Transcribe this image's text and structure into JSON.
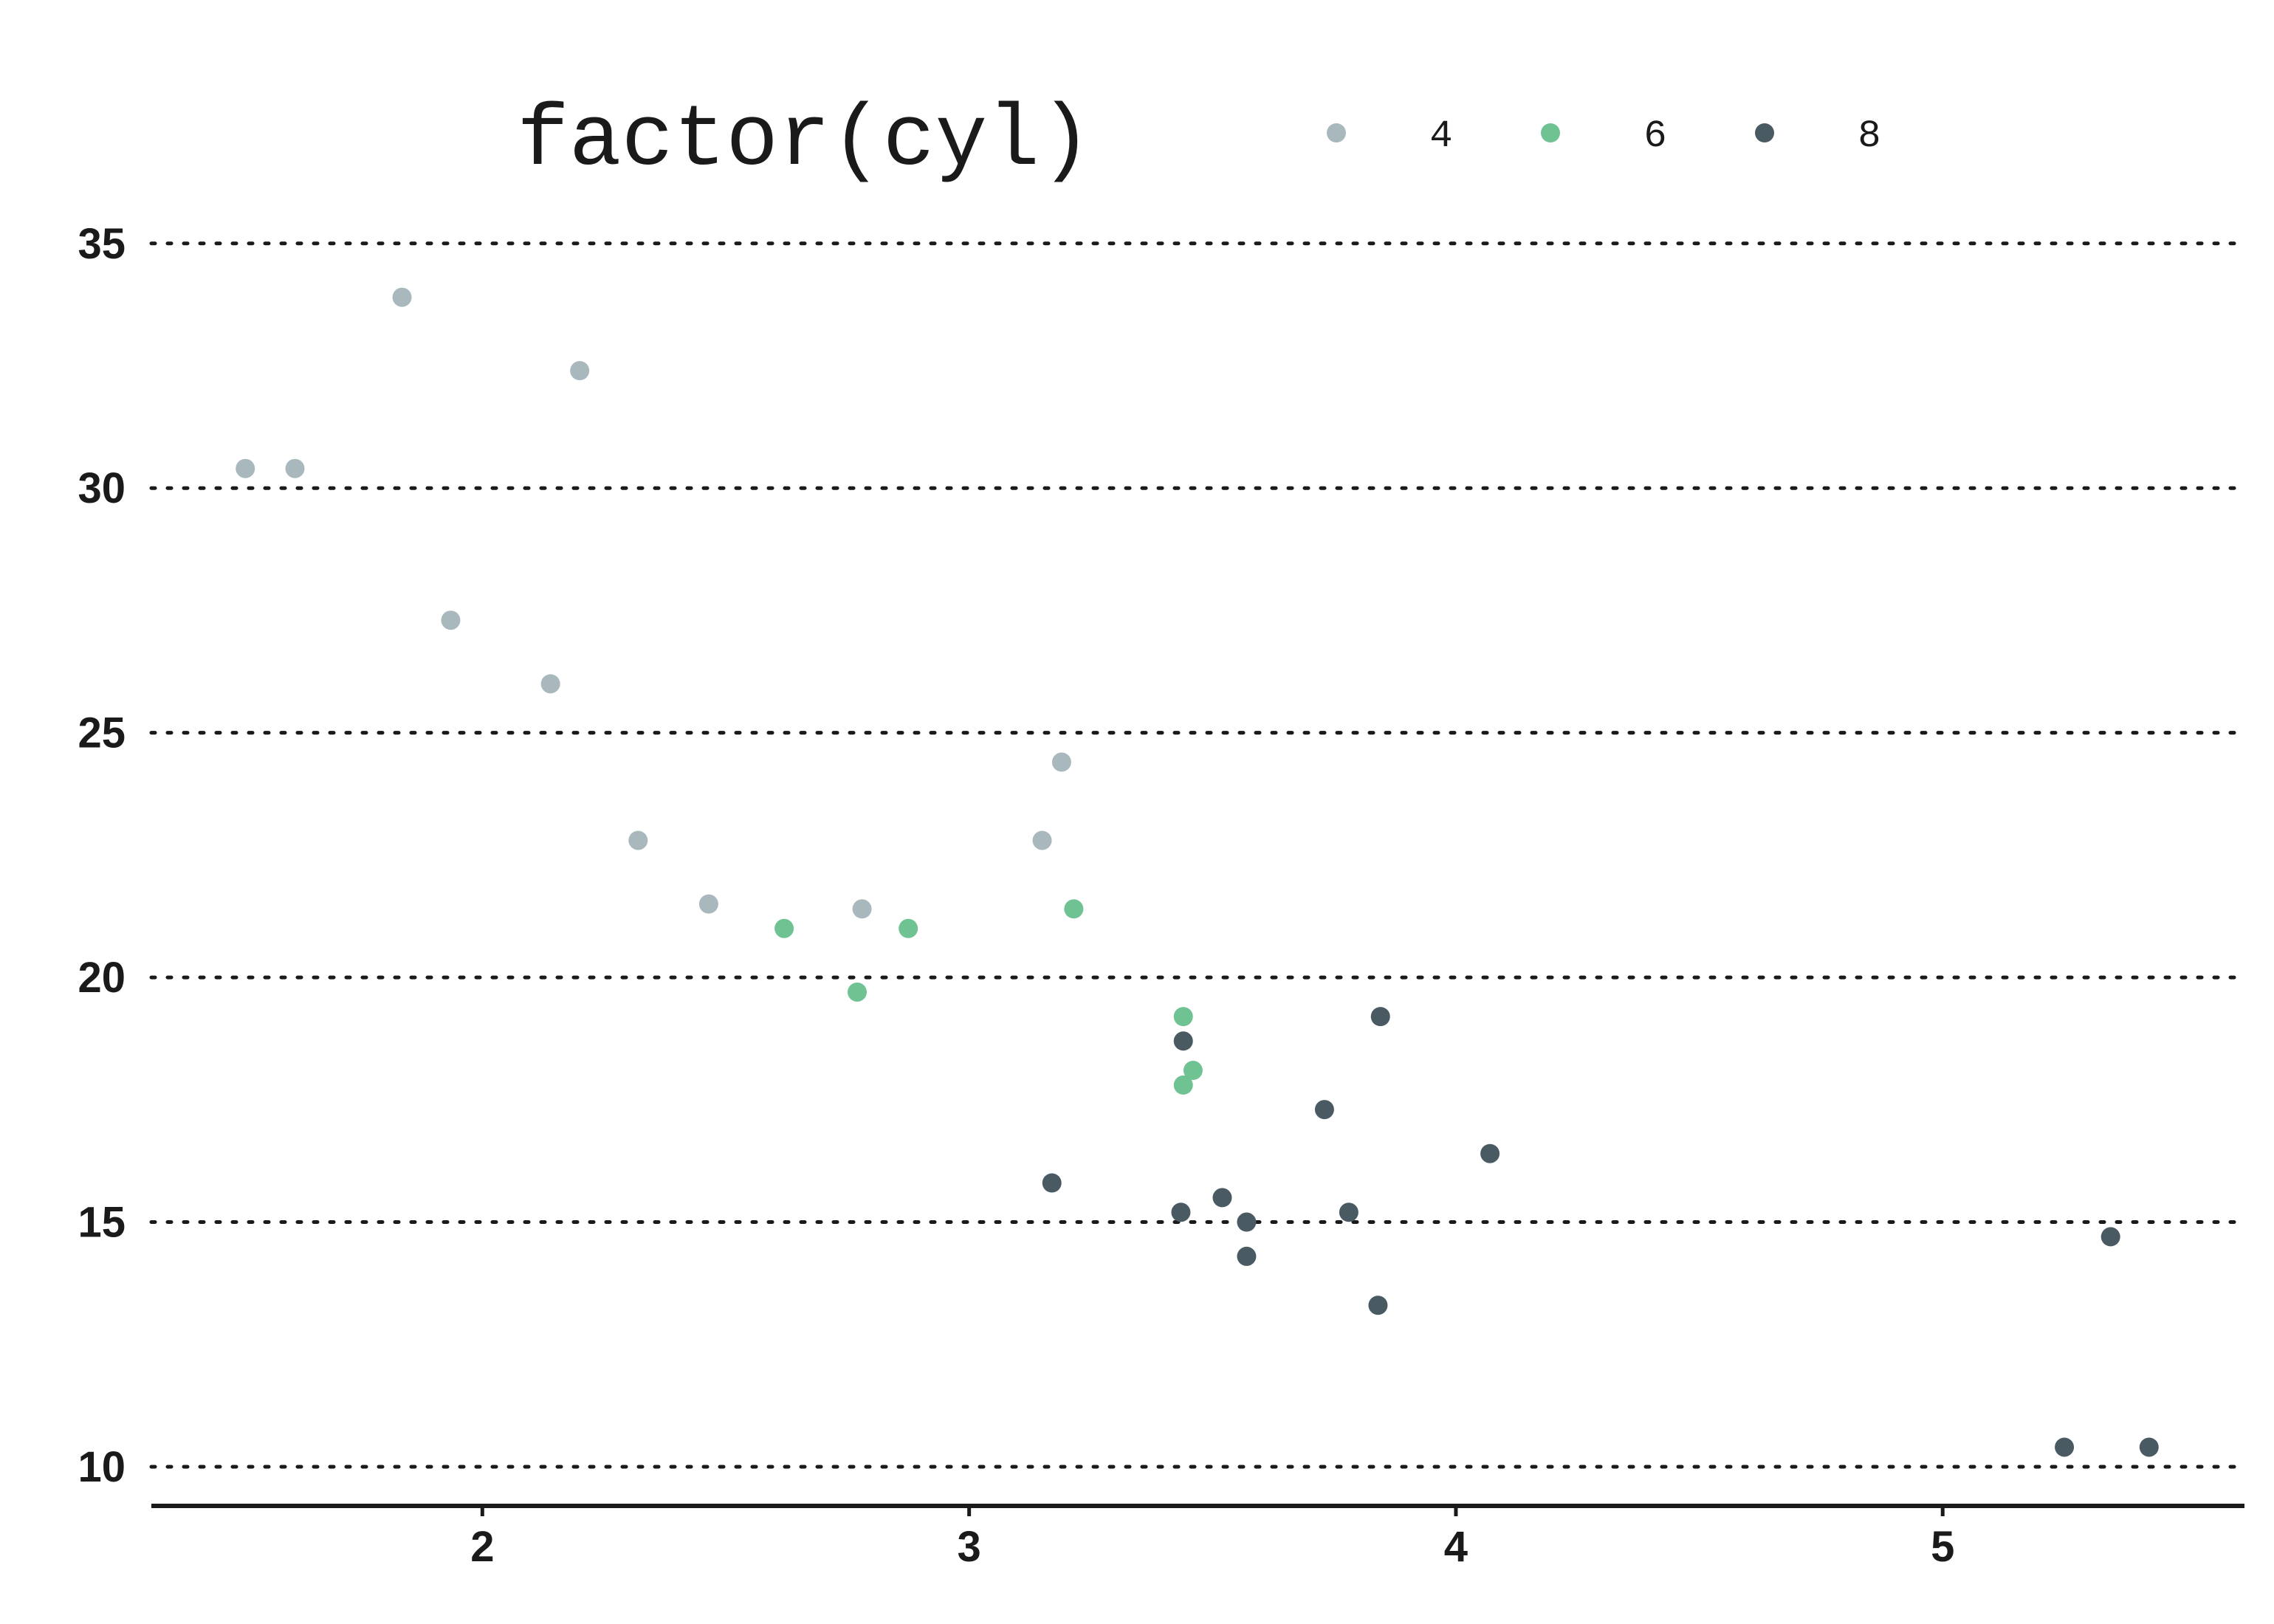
{
  "chart_data": {
    "type": "scatter",
    "title": "",
    "xlabel": "",
    "ylabel": "",
    "xlim": [
      1.32,
      5.62
    ],
    "ylim": [
      9.2,
      35.6
    ],
    "x_ticks": [
      2,
      3,
      4,
      5
    ],
    "y_ticks": [
      10,
      15,
      20,
      25,
      30,
      35
    ],
    "grid": {
      "horizontal": true,
      "vertical": false,
      "style": "dotted"
    },
    "legend": {
      "title": "factor(cyl)",
      "placement": "top",
      "entries": [
        {
          "label": "4",
          "color": "#a8b8bd"
        },
        {
          "label": "6",
          "color": "#6fc393"
        },
        {
          "label": "8",
          "color": "#4a5a63"
        }
      ]
    },
    "series": [
      {
        "name": "4",
        "color": "#a8b8bd",
        "points": [
          [
            1.513,
            30.4
          ],
          [
            1.615,
            30.4
          ],
          [
            1.835,
            33.9
          ],
          [
            1.935,
            27.3
          ],
          [
            2.14,
            26.0
          ],
          [
            2.2,
            32.4
          ],
          [
            2.32,
            22.8
          ],
          [
            2.465,
            21.5
          ],
          [
            2.78,
            21.4
          ],
          [
            3.15,
            22.8
          ],
          [
            3.19,
            24.4
          ]
        ]
      },
      {
        "name": "6",
        "color": "#6fc393",
        "points": [
          [
            2.62,
            21.0
          ],
          [
            2.77,
            19.7
          ],
          [
            2.875,
            21.0
          ],
          [
            3.215,
            21.4
          ],
          [
            3.44,
            19.2
          ],
          [
            3.44,
            17.8
          ],
          [
            3.46,
            18.1
          ]
        ]
      },
      {
        "name": "8",
        "color": "#4a5a63",
        "points": [
          [
            3.17,
            15.8
          ],
          [
            3.435,
            15.2
          ],
          [
            3.44,
            18.7
          ],
          [
            3.52,
            15.5
          ],
          [
            3.57,
            15.0
          ],
          [
            3.57,
            14.3
          ],
          [
            3.73,
            17.3
          ],
          [
            3.78,
            15.2
          ],
          [
            3.84,
            13.3
          ],
          [
            3.845,
            19.2
          ],
          [
            4.07,
            16.4
          ],
          [
            5.25,
            10.4
          ],
          [
            5.345,
            14.7
          ],
          [
            5.424,
            10.4
          ]
        ]
      }
    ]
  }
}
